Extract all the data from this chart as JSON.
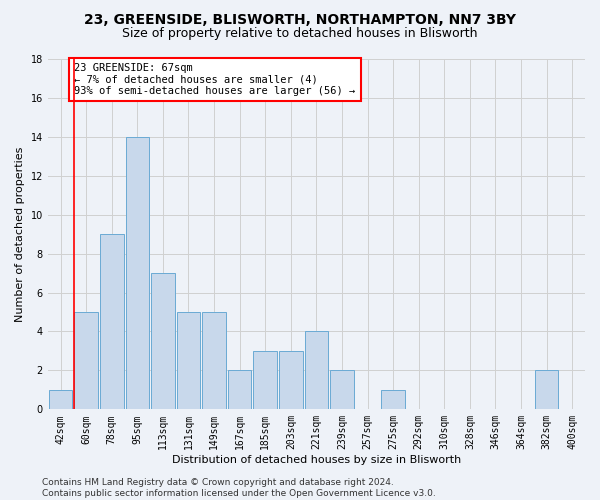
{
  "title1": "23, GREENSIDE, BLISWORTH, NORTHAMPTON, NN7 3BY",
  "title2": "Size of property relative to detached houses in Blisworth",
  "xlabel": "Distribution of detached houses by size in Blisworth",
  "ylabel": "Number of detached properties",
  "bin_labels": [
    "42sqm",
    "60sqm",
    "78sqm",
    "95sqm",
    "113sqm",
    "131sqm",
    "149sqm",
    "167sqm",
    "185sqm",
    "203sqm",
    "221sqm",
    "239sqm",
    "257sqm",
    "275sqm",
    "292sqm",
    "310sqm",
    "328sqm",
    "346sqm",
    "364sqm",
    "382sqm",
    "400sqm"
  ],
  "bar_heights": [
    1,
    5,
    9,
    14,
    7,
    5,
    5,
    2,
    3,
    3,
    4,
    2,
    0,
    1,
    0,
    0,
    0,
    0,
    0,
    2,
    0
  ],
  "bar_color": "#c8d8eb",
  "bar_edge_color": "#6aaad4",
  "grid_color": "#d0d0d0",
  "background_color": "#eef2f8",
  "vline_xidx": 1,
  "annotation_text": "23 GREENSIDE: 67sqm\n← 7% of detached houses are smaller (4)\n93% of semi-detached houses are larger (56) →",
  "annotation_box_color": "white",
  "annotation_box_edge": "red",
  "footer_text": "Contains HM Land Registry data © Crown copyright and database right 2024.\nContains public sector information licensed under the Open Government Licence v3.0.",
  "ylim": [
    0,
    18
  ],
  "yticks": [
    0,
    2,
    4,
    6,
    8,
    10,
    12,
    14,
    16,
    18
  ],
  "vline_color": "red",
  "title_fontsize": 10,
  "subtitle_fontsize": 9,
  "axis_label_fontsize": 8,
  "tick_fontsize": 7,
  "annotation_fontsize": 7.5,
  "footer_fontsize": 6.5
}
